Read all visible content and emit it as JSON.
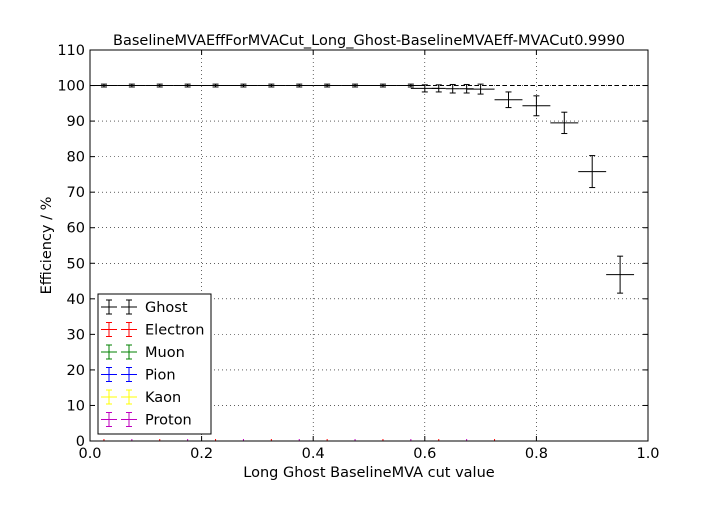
{
  "chart_data": {
    "type": "scatter",
    "title": "BaselineMVAEffForMVACut_Long_Ghost-BaselineMVAEff-MVACut0.9990",
    "xlabel": "Long Ghost BaselineMVA cut value",
    "ylabel": "Efficiency / %",
    "xlim": [
      0.0,
      1.0
    ],
    "ylim": [
      0,
      110
    ],
    "xticks": [
      0.0,
      0.2,
      0.4,
      0.6,
      0.8,
      1.0
    ],
    "xtick_labels": [
      "0.0",
      "0.2",
      "0.4",
      "0.6",
      "0.8",
      "1.0"
    ],
    "yticks": [
      0,
      10,
      20,
      30,
      40,
      50,
      60,
      70,
      80,
      90,
      100,
      110
    ],
    "ytick_labels": [
      "0",
      "10",
      "20",
      "30",
      "40",
      "50",
      "60",
      "70",
      "80",
      "90",
      "100",
      "110"
    ],
    "grid": true,
    "legend_position": "bottom-left",
    "reference_line": {
      "y": 100,
      "style": "dashed"
    },
    "series": [
      {
        "name": "Ghost",
        "color": "#000000",
        "x": [
          0.025,
          0.075,
          0.125,
          0.175,
          0.225,
          0.275,
          0.325,
          0.375,
          0.425,
          0.475,
          0.525,
          0.575,
          0.6,
          0.625,
          0.65,
          0.675,
          0.7,
          0.75,
          0.8,
          0.85,
          0.9,
          0.95
        ],
        "xerr": [
          0.025,
          0.025,
          0.025,
          0.025,
          0.025,
          0.025,
          0.025,
          0.025,
          0.025,
          0.025,
          0.025,
          0.025,
          0.025,
          0.0125,
          0.0125,
          0.0125,
          0.025,
          0.025,
          0.025,
          0.025,
          0.025,
          0.025
        ],
        "y": [
          100,
          100,
          100,
          100,
          100,
          100,
          100,
          100,
          100,
          100,
          100,
          100,
          99.2,
          99.2,
          99.1,
          99.1,
          99.0,
          96.0,
          94.3,
          89.5,
          75.8,
          46.8
        ],
        "yerr": [
          0.4,
          0.4,
          0.4,
          0.4,
          0.4,
          0.4,
          0.4,
          0.4,
          0.4,
          0.4,
          0.4,
          0.4,
          1.0,
          1.0,
          1.2,
          1.2,
          1.4,
          2.2,
          2.8,
          3.0,
          4.5,
          5.2
        ]
      },
      {
        "name": "Electron",
        "color": "#ff0000",
        "x": [],
        "y": []
      },
      {
        "name": "Muon",
        "color": "#008000",
        "x": [],
        "y": []
      },
      {
        "name": "Pion",
        "color": "#0000ff",
        "x": [],
        "y": []
      },
      {
        "name": "Kaon",
        "color": "#ffff00",
        "x": [],
        "y": []
      },
      {
        "name": "Proton",
        "color": "#bf00bf",
        "x": [],
        "y": []
      }
    ]
  }
}
